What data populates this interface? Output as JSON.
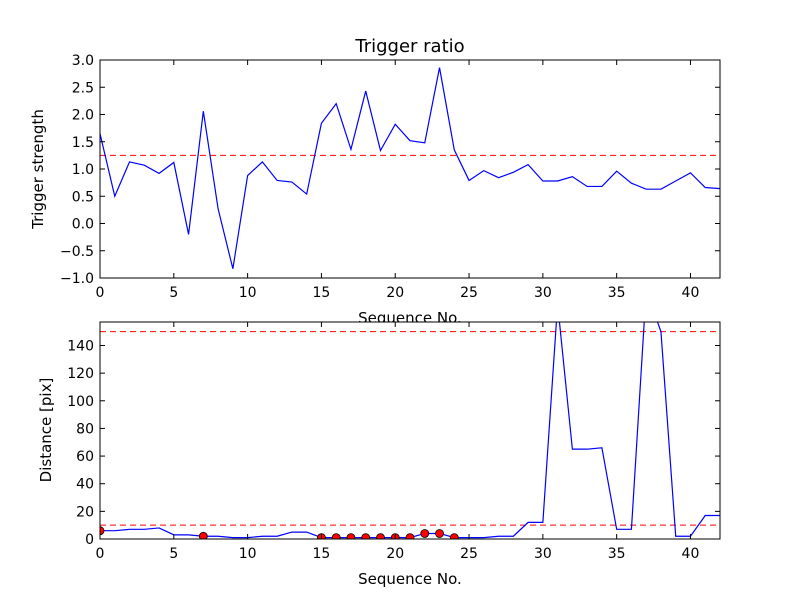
{
  "chart_data": [
    {
      "type": "line",
      "title": "Trigger ratio",
      "xlabel": "Sequence No.",
      "ylabel": "Trigger strength",
      "xlim": [
        0,
        42
      ],
      "ylim": [
        -1.0,
        3.0
      ],
      "xticks": [
        0,
        5,
        10,
        15,
        20,
        25,
        30,
        35,
        40
      ],
      "yticks": [
        -1.0,
        -0.5,
        0.0,
        0.5,
        1.0,
        1.5,
        2.0,
        2.5,
        3.0
      ],
      "ytick_labels": [
        "−1.0",
        "−0.5",
        "0.0",
        "0.5",
        "1.0",
        "1.5",
        "2.0",
        "2.5",
        "3.0"
      ],
      "grid": false,
      "threshold": 1.25,
      "series": [
        {
          "color": "#0000ff",
          "x": [
            0,
            1,
            2,
            3,
            4,
            5,
            6,
            7,
            8,
            9,
            10,
            11,
            12,
            13,
            14,
            15,
            16,
            17,
            18,
            19,
            20,
            21,
            22,
            23,
            24,
            25,
            26,
            27,
            28,
            29,
            30,
            31,
            32,
            33,
            34,
            35,
            36,
            37,
            38,
            39,
            40,
            41,
            42
          ],
          "values": [
            1.65,
            0.5,
            1.13,
            1.07,
            0.92,
            1.12,
            -0.2,
            2.06,
            0.27,
            -0.83,
            0.88,
            1.13,
            0.79,
            0.76,
            0.54,
            1.84,
            2.2,
            1.36,
            2.43,
            1.34,
            1.82,
            1.52,
            1.48,
            2.86,
            1.35,
            0.79,
            0.97,
            0.84,
            0.94,
            1.08,
            0.78,
            0.78,
            0.86,
            0.68,
            0.68,
            0.96,
            0.74,
            0.63,
            0.63,
            0.78,
            0.93,
            0.66,
            0.64
          ]
        }
      ]
    },
    {
      "type": "line",
      "title": "",
      "xlabel": "Sequence No.",
      "ylabel": "Distance [pix]",
      "xlim": [
        0,
        42
      ],
      "ylim": [
        0,
        157
      ],
      "xticks": [
        0,
        5,
        10,
        15,
        20,
        25,
        30,
        35,
        40
      ],
      "yticks": [
        0,
        20,
        40,
        60,
        80,
        100,
        120,
        140
      ],
      "grid": false,
      "thresholds": [
        150,
        10
      ],
      "series": [
        {
          "color": "#0000ff",
          "x": [
            0,
            1,
            2,
            3,
            4,
            5,
            6,
            7,
            8,
            9,
            10,
            11,
            12,
            13,
            14,
            15,
            16,
            17,
            18,
            19,
            20,
            21,
            22,
            23,
            24,
            25,
            26,
            27,
            28,
            29,
            30,
            31,
            32,
            33,
            34,
            35,
            36,
            37,
            38,
            39,
            40,
            41,
            42
          ],
          "values": [
            6,
            6,
            7,
            7,
            8,
            3,
            3,
            2,
            2,
            1,
            1,
            2,
            2,
            5,
            5,
            1,
            1,
            1,
            1,
            1,
            1,
            1,
            4,
            4,
            1,
            1,
            1,
            2,
            2,
            12,
            12,
            170,
            65,
            65,
            66,
            7,
            7,
            180,
            150,
            2,
            2,
            17,
            17
          ]
        }
      ],
      "markers": {
        "color": "#ff0000",
        "x": [
          0,
          7,
          15,
          16,
          17,
          18,
          19,
          20,
          21,
          22,
          23,
          24
        ],
        "values": [
          6,
          2,
          1,
          1,
          1,
          1,
          1,
          1,
          1,
          4,
          4,
          1
        ]
      }
    }
  ]
}
